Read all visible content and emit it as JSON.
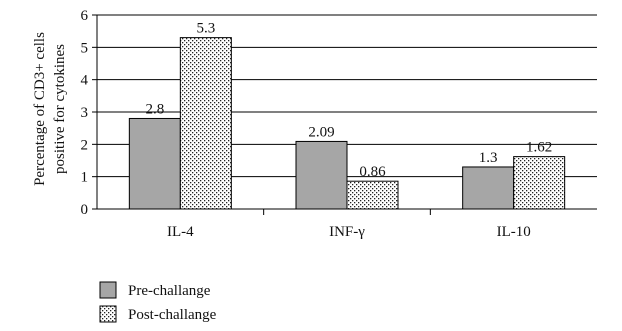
{
  "chart_data": {
    "type": "bar",
    "title": "",
    "xlabel": "",
    "ylabel_lines": [
      "Percentage of CD3+ cells",
      "positive for cytokines"
    ],
    "categories": [
      "IL-4",
      "INF-γ",
      "IL-10"
    ],
    "series": [
      {
        "name": "Pre-challange",
        "values": [
          2.8,
          2.09,
          1.3
        ],
        "labels": [
          "2.8",
          "2.09",
          "1.3"
        ],
        "color": "#a6a6a6",
        "pattern": "solid"
      },
      {
        "name": "Post-challange",
        "values": [
          5.3,
          0.86,
          1.62
        ],
        "labels": [
          "5.3",
          "0.86",
          "1.62"
        ],
        "color": "#ffffff",
        "pattern": "dotted"
      }
    ],
    "ylim": [
      0,
      6
    ],
    "yticks": [
      0,
      1,
      2,
      3,
      4,
      5,
      6
    ],
    "grid": true,
    "legend_position": "bottom-left"
  }
}
